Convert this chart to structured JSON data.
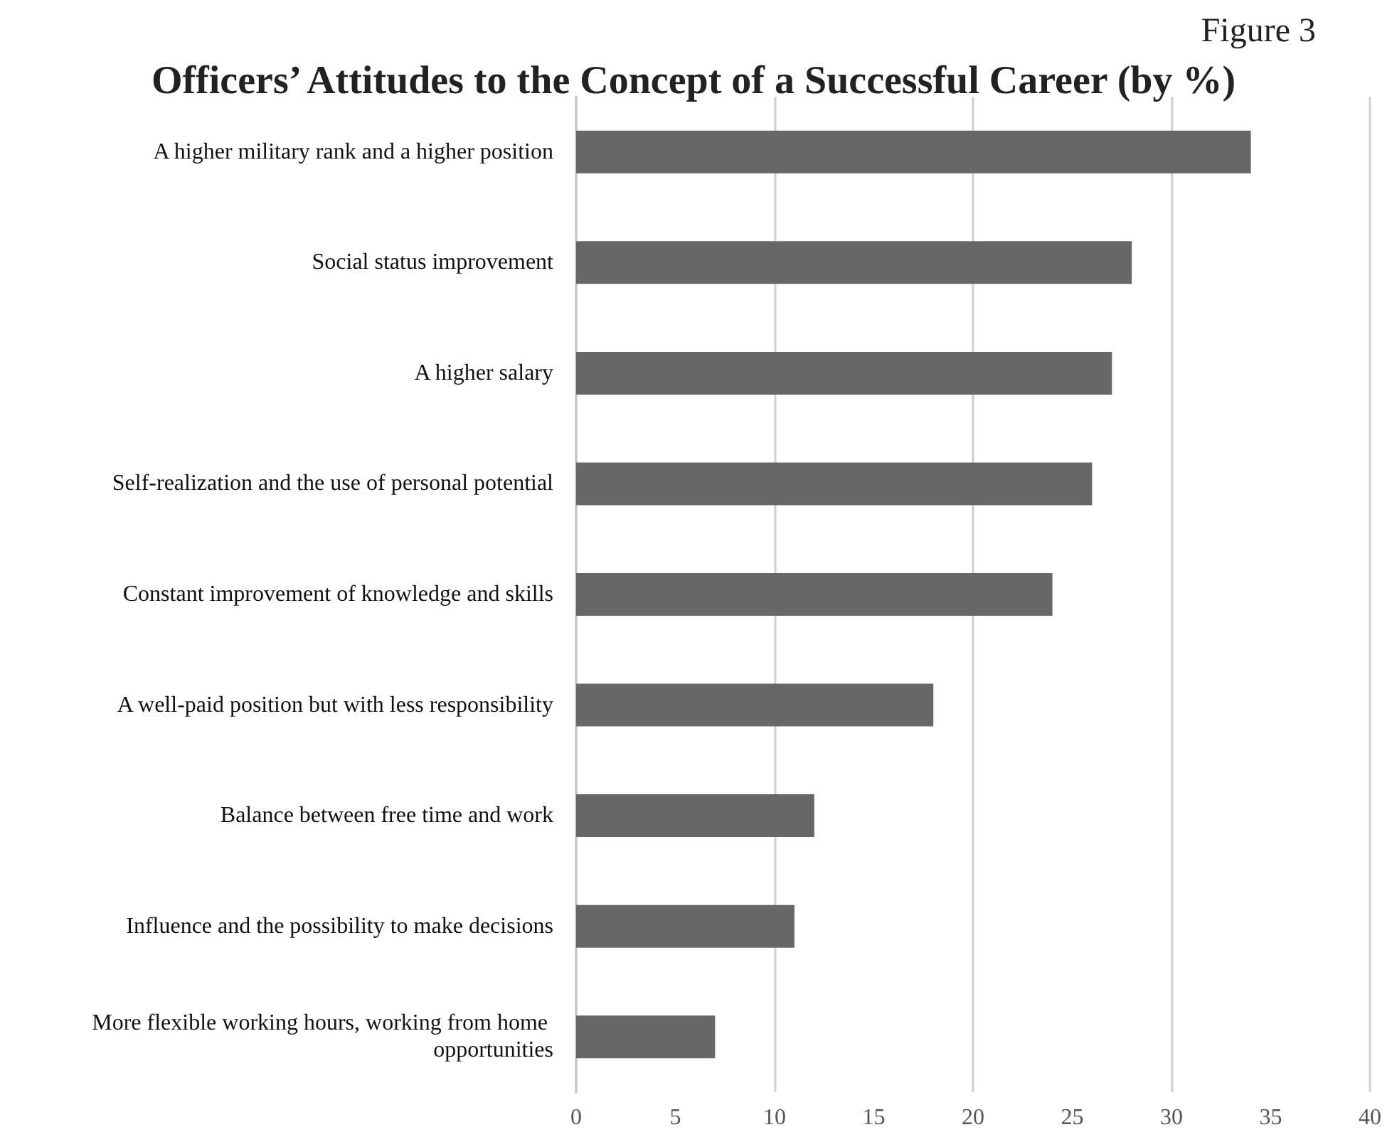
{
  "chart_data": {
    "type": "bar",
    "orientation": "horizontal",
    "title": "Officers’ Attitudes to the Concept of a Successful Career (by %)",
    "annotations": [
      "Figure 3"
    ],
    "categories": [
      "A higher military rank and a higher position",
      "Social status improvement",
      "A higher salary",
      "Self-realization and the use of personal potential",
      "Constant improvement of knowledge and skills",
      "A well-paid position but with less responsibility",
      "Balance between free time and work",
      "Influence and the possibility to make decisions",
      "More flexible working hours, working from home opportunities"
    ],
    "values": [
      34,
      28,
      27,
      26,
      24,
      18,
      12,
      11,
      7
    ],
    "color": "#676767",
    "xlim": [
      0,
      40
    ],
    "xticks": [
      0,
      5,
      10,
      15,
      20,
      25,
      30,
      35,
      40
    ],
    "grid": "x"
  }
}
